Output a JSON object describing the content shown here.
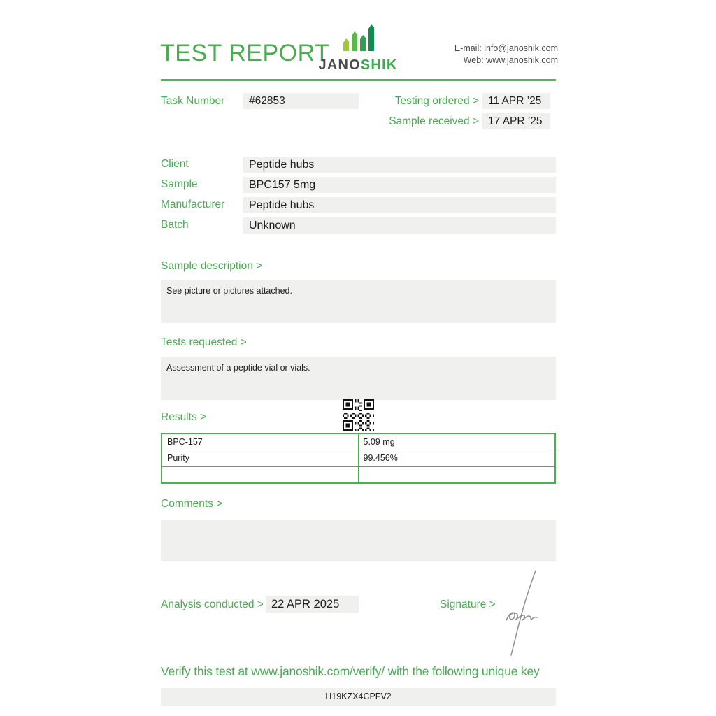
{
  "header": {
    "title": "TEST REPORT",
    "logo": {
      "prefix": "JANO",
      "suffix": "SHIK"
    },
    "contact": {
      "email_label": "E-mail:",
      "email": "info@janoshik.com",
      "web_label": "Web:",
      "web": "www.janoshik.com"
    }
  },
  "meta": {
    "task_number_label": "Task Number",
    "task_number": "#62853",
    "testing_ordered_label": "Testing ordered  >",
    "testing_ordered": "11 APR ’25",
    "sample_received_label": "Sample received >",
    "sample_received": "17 APR ’25"
  },
  "details": {
    "rows": [
      {
        "label": "Client",
        "value": "Peptide hubs"
      },
      {
        "label": "Sample",
        "value": "BPC157 5mg"
      },
      {
        "label": "Manufacturer",
        "value": "Peptide hubs"
      },
      {
        "label": "Batch",
        "value": "Unknown"
      }
    ]
  },
  "sample_description": {
    "label": "Sample description >",
    "text": "See picture or pictures attached."
  },
  "tests_requested": {
    "label": "Tests requested >",
    "text": "Assessment of a peptide vial or vials."
  },
  "results": {
    "label": "Results >",
    "rows": [
      {
        "name": "BPC-157",
        "value": "5.09 mg"
      },
      {
        "name": "Purity",
        "value": "99.456%"
      },
      {
        "name": "",
        "value": ""
      }
    ]
  },
  "comments": {
    "label": "Comments >",
    "text": ""
  },
  "footer": {
    "analysis_label": "Analysis conducted >",
    "analysis_date": "22 APR 2025",
    "signature_label": "Signature >",
    "verify_text": "Verify this test at www.janoshik.com/verify/ with the following unique key",
    "unique_key": "H19KZX4CPFV2"
  },
  "colors": {
    "accent_green": "#4ca954",
    "logo_green": "#35ab4b",
    "text_dark": "#1d1d1b",
    "field_background": "#f0f0ef",
    "contact_gray": "#4a4a48",
    "signature_gray": "#8f8f8f"
  }
}
